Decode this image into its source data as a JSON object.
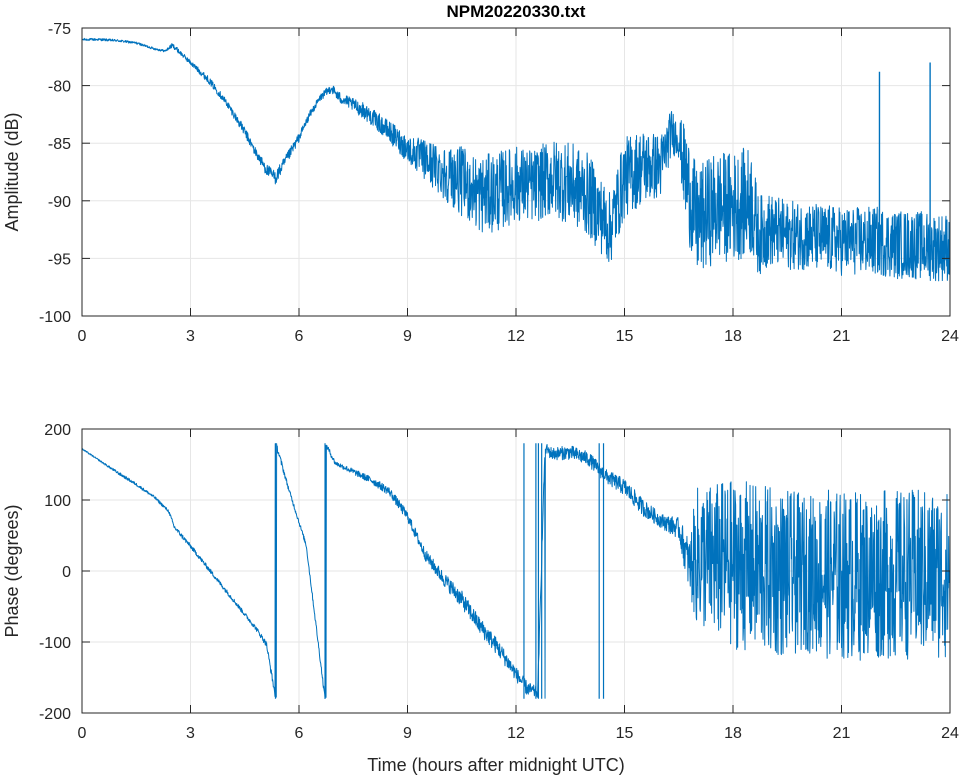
{
  "figure": {
    "title": "NPM20220330.txt",
    "xlabel": "Time (hours after midnight UTC)"
  },
  "chart_data": [
    {
      "type": "line",
      "title": "NPM20220330.txt",
      "xlabel": "",
      "ylabel": "Amplitude (dB)",
      "xlim": [
        0,
        24
      ],
      "ylim": [
        -100,
        -75
      ],
      "xticks": [
        0,
        3,
        6,
        9,
        12,
        15,
        18,
        21,
        24
      ],
      "xtick_labels": [
        "0",
        "3",
        "6",
        "9",
        "12",
        "15",
        "18",
        "21",
        "24"
      ],
      "yticks": [
        -100,
        -95,
        -90,
        -85,
        -80,
        -75
      ],
      "ytick_labels": [
        "-100",
        "-95",
        "-90",
        "-85",
        "-80",
        "-75"
      ],
      "grid": true,
      "color": "#0072BD",
      "series": [
        {
          "x": [
            0,
            0.5,
            1,
            1.5,
            2,
            2.3,
            2.5,
            2.7,
            3,
            3.5,
            4,
            4.5,
            4.8,
            5.1,
            5.35,
            5.6,
            6,
            6.3,
            6.6,
            6.9,
            7.1,
            7.4,
            7.8,
            8.2,
            8.6,
            9,
            9.5,
            10,
            10.5,
            11,
            11.5,
            12,
            12.5,
            13,
            13.5,
            14,
            14.3,
            14.6,
            15,
            15.5,
            16,
            16.3,
            16.5,
            16.7,
            17,
            17.5,
            18,
            18.5,
            18.7,
            19,
            19.5,
            20,
            20.5,
            21,
            21.5,
            22,
            22.5,
            23,
            23.5,
            24
          ],
          "y": [
            -76,
            -76,
            -76.1,
            -76.3,
            -76.8,
            -77,
            -76.5,
            -77.1,
            -78,
            -79.5,
            -81.5,
            -84,
            -85.8,
            -87.3,
            -88,
            -86.7,
            -84.5,
            -82.5,
            -81,
            -80.2,
            -81,
            -81.5,
            -82.2,
            -83.2,
            -84.3,
            -85.5,
            -86.5,
            -87.5,
            -88.3,
            -89.5,
            -89.2,
            -88.5,
            -88.7,
            -88,
            -88.5,
            -89.5,
            -91,
            -92.5,
            -88,
            -87,
            -87,
            -84,
            -84.5,
            -88,
            -92,
            -90.5,
            -90.5,
            -90,
            -93,
            -92.5,
            -93,
            -93,
            -93.3,
            -93.5,
            -93.5,
            -93.5,
            -93.8,
            -93.8,
            -94,
            -94
          ],
          "noise_band": [
            0.1,
            0.1,
            0.1,
            0.1,
            0.1,
            0.1,
            0.2,
            0.2,
            0.2,
            0.3,
            0.3,
            0.4,
            0.4,
            0.5,
            0.6,
            0.5,
            0.4,
            0.3,
            0.3,
            0.4,
            0.5,
            0.5,
            0.7,
            0.8,
            1,
            1.2,
            1.8,
            2.4,
            3,
            3.4,
            3.5,
            3.3,
            3.2,
            3.4,
            3.6,
            3.6,
            3.4,
            3.2,
            3.5,
            3.3,
            2.8,
            2,
            1.8,
            4.5,
            4.8,
            4.8,
            4.8,
            4.8,
            3.5,
            3.2,
            3,
            3,
            3,
            3,
            3,
            3,
            3,
            3,
            3,
            3
          ]
        }
      ],
      "spikes": [
        {
          "x": 22.05,
          "y": -78.8
        },
        {
          "x": 23.45,
          "y": -78
        }
      ]
    },
    {
      "type": "line",
      "xlabel": "Time (hours after midnight UTC)",
      "ylabel": "Phase (degrees)",
      "xlim": [
        0,
        24
      ],
      "ylim": [
        -200,
        200
      ],
      "xticks": [
        0,
        3,
        6,
        9,
        12,
        15,
        18,
        21,
        24
      ],
      "xtick_labels": [
        "0",
        "3",
        "6",
        "9",
        "12",
        "15",
        "18",
        "21",
        "24"
      ],
      "yticks": [
        -200,
        -100,
        0,
        100,
        200
      ],
      "ytick_labels": [
        "-200",
        "-100",
        "0",
        "100",
        "200"
      ],
      "grid": true,
      "color": "#0072BD",
      "series": [
        {
          "x": [
            0,
            0.5,
            1,
            1.5,
            2,
            2.4,
            2.55,
            3,
            3.5,
            4,
            4.5,
            4.8,
            5.1,
            5.35,
            5.36,
            5.7,
            6.2,
            6.72,
            6.73,
            7,
            7.5,
            8,
            8.5,
            9,
            9.5,
            10,
            10.5,
            11,
            11.5,
            12,
            12.3,
            12.6,
            12.8,
            13,
            13.5,
            14,
            14.5,
            15,
            15.5,
            16,
            16.5,
            16.8,
            17,
            17.5,
            18,
            18.5,
            19,
            19.5,
            20,
            20.5,
            21,
            21.5,
            22,
            22.5,
            23,
            23.5,
            24
          ],
          "y": [
            172,
            155,
            138,
            122,
            104,
            84,
            62,
            35,
            3,
            -29,
            -61,
            -80,
            -103,
            -178,
            180,
            118,
            36,
            -180,
            180,
            152,
            140,
            128,
            112,
            77,
            22,
            -11,
            -40,
            -77,
            -108,
            -145,
            -165,
            -172,
            173,
            165,
            167,
            158,
            133,
            118,
            90,
            71,
            60,
            6,
            20,
            15,
            10,
            5,
            0,
            -5,
            -3,
            -4,
            -6,
            -6,
            -5,
            -5,
            -4,
            -4,
            -5
          ],
          "noise_band": [
            1,
            1,
            2,
            2,
            2,
            2,
            3,
            3,
            3,
            3,
            3,
            3,
            4,
            5,
            5,
            3,
            3,
            4,
            4,
            3,
            4,
            5,
            6,
            7,
            8,
            10,
            12,
            12,
            12,
            10,
            10,
            8,
            8,
            9,
            10,
            10,
            10,
            12,
            12,
            10,
            15,
            40,
            100,
            110,
            120,
            120,
            120,
            120,
            110,
            120,
            120,
            120,
            120,
            120,
            120,
            120,
            120
          ]
        }
      ],
      "wraps": [
        5.35,
        6.72,
        12.22,
        12.55,
        12.62,
        12.71,
        14.3,
        14.42
      ]
    }
  ]
}
